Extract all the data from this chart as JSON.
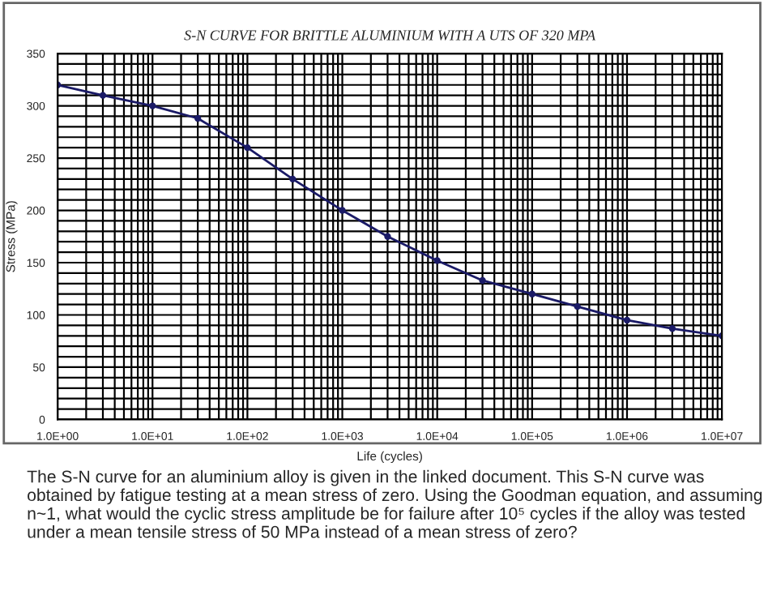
{
  "chart_data": {
    "type": "line",
    "title": "S-N CURVE FOR BRITTLE ALUMINIUM WITH A UTS OF 320 MPA",
    "xlabel": "Life (cycles)",
    "ylabel": "Stress (MPa)",
    "x": [
      1,
      3,
      10,
      30,
      100,
      300,
      1000,
      3000,
      10000,
      30000,
      100000,
      300000,
      1000000,
      3000000,
      10000000
    ],
    "series": [
      {
        "color": "#1a1a66",
        "values": [
          320,
          310,
          300,
          288,
          260,
          230,
          200,
          175,
          152,
          133,
          120,
          108,
          95,
          87,
          80
        ]
      }
    ],
    "log": "x",
    "xlim": [
      1,
      10000000
    ],
    "ylim": [
      0,
      350
    ],
    "xticks": [
      {
        "value": 1,
        "label": "1.0E+00"
      },
      {
        "value": 10,
        "label": "1.0E+01"
      },
      {
        "value": 100,
        "label": "1.0E+02"
      },
      {
        "value": 1000,
        "label": "1.0E+03"
      },
      {
        "value": 10000,
        "label": "1.0E+04"
      },
      {
        "value": 100000,
        "label": "1.0E+05"
      },
      {
        "value": 1000000,
        "label": "1.0E+06"
      },
      {
        "value": 10000000,
        "label": "1.0E+07"
      }
    ],
    "yticks": [
      0,
      {
        "value": 10,
        "label": null
      },
      {
        "value": 20,
        "label": null
      },
      {
        "value": 30,
        "label": null
      },
      {
        "value": 40,
        "label": null
      },
      50,
      {
        "value": 60,
        "label": null
      },
      {
        "value": 70,
        "label": null
      },
      {
        "value": 80,
        "label": null
      },
      {
        "value": 90,
        "label": null
      },
      100,
      {
        "value": 110,
        "label": null
      },
      {
        "value": 120,
        "label": null
      },
      {
        "value": 130,
        "label": null
      },
      {
        "value": 140,
        "label": null
      },
      150,
      {
        "value": 160,
        "label": null
      },
      {
        "value": 170,
        "label": null
      },
      {
        "value": 180,
        "label": null
      },
      {
        "value": 190,
        "label": null
      },
      200,
      {
        "value": 210,
        "label": null
      },
      {
        "value": 220,
        "label": null
      },
      {
        "value": 230,
        "label": null
      },
      {
        "value": 240,
        "label": null
      },
      250,
      {
        "value": 260,
        "label": null
      },
      {
        "value": 270,
        "label": null
      },
      {
        "value": 280,
        "label": null
      },
      {
        "value": 290,
        "label": null
      },
      300,
      {
        "value": 310,
        "label": null
      },
      {
        "value": 320,
        "label": null
      },
      {
        "value": 330,
        "label": null
      },
      {
        "value": 340,
        "label": null
      },
      350
    ],
    "grid": true,
    "marker": "circle",
    "line_style": "solid",
    "annotations": [
      "The S-N curve for an aluminium alloy is given in the linked document. This S-N curve was obtained by fatigue testing at a mean stress of zero. Using the Goodman equation, and assuming n~1, what would the cyclic stress amplitude be for failure after 10⁵ cycles if the alloy was tested under a mean tensile stress of 50 MPa instead of a mean stress of zero?"
    ]
  }
}
